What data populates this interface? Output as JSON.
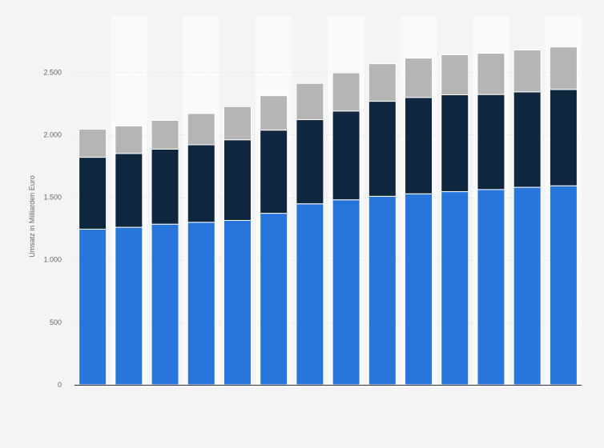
{
  "chart_data": {
    "type": "bar",
    "stacked": true,
    "categories": [
      "",
      "",
      "",
      "",
      "",
      "",
      "",
      "",
      "",
      "",
      "",
      "",
      "",
      ""
    ],
    "series": [
      {
        "color": "#2875dc",
        "values": [
          1245,
          1260,
          1285,
          1300,
          1315,
          1372,
          1448,
          1480,
          1508,
          1528,
          1545,
          1562,
          1580,
          1592
        ]
      },
      {
        "color": "#0f263f",
        "values": [
          575,
          590,
          600,
          620,
          645,
          665,
          673,
          710,
          760,
          770,
          775,
          760,
          763,
          770
        ]
      },
      {
        "color": "#b5b5b5",
        "values": [
          225,
          220,
          230,
          250,
          265,
          275,
          290,
          305,
          300,
          315,
          320,
          330,
          335,
          340
        ]
      }
    ],
    "ylabel": "Umsatz in Milliarden Euro",
    "ylim": [
      0,
      2950
    ],
    "yticks": [
      0,
      500,
      1000,
      1500,
      2000,
      2500
    ],
    "ytick_labels": [
      "0",
      "500",
      "1.000",
      "1.500",
      "2.000",
      "2.500"
    ],
    "grid": true,
    "legend": "none"
  }
}
